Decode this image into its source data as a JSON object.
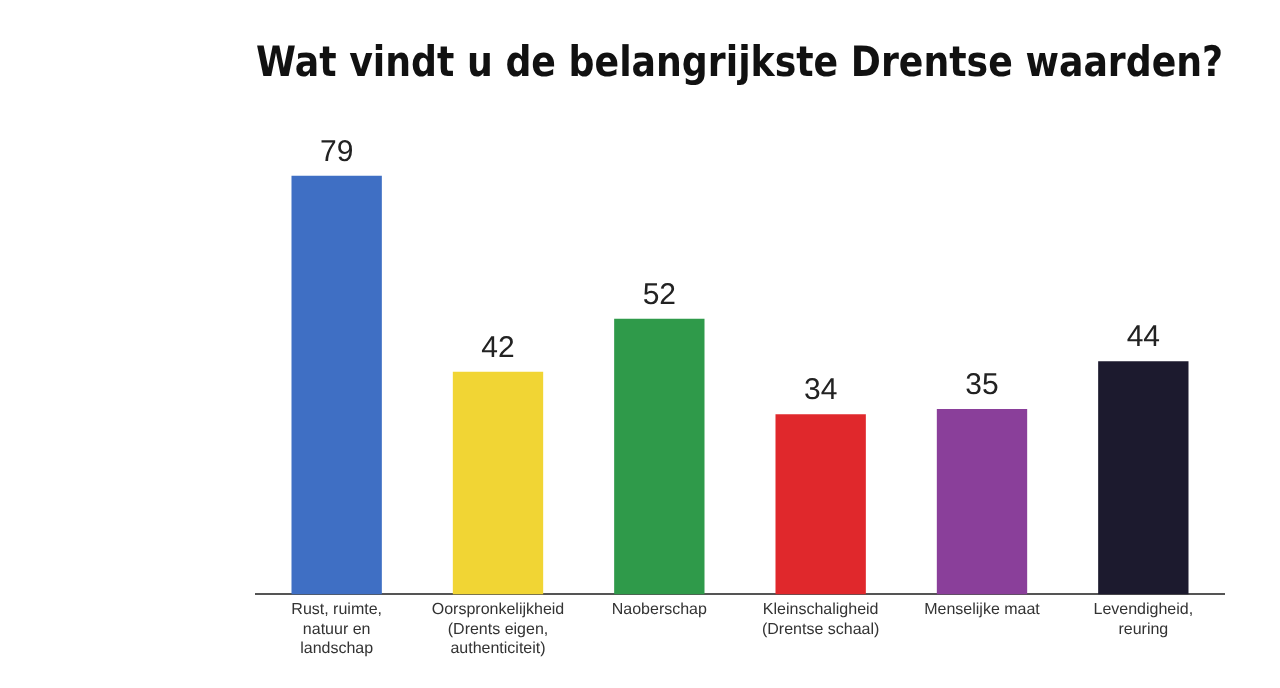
{
  "chart_data": {
    "type": "bar",
    "title": "Wat vindt u de belangrijkste Drentse waarden?",
    "categories": [
      "Rust, ruimte, natuur en landschap",
      "Oorspronkelijkheid (Drents eigen, authenticiteit)",
      "Naoberschap",
      "Kleinschaligheid (Drentse schaal)",
      "Menselijke maat",
      "Levendigheid, reuring"
    ],
    "values": [
      79,
      42,
      52,
      34,
      35,
      44
    ],
    "colors": [
      "#3f6fc4",
      "#f1d534",
      "#2f9a4a",
      "#e0282c",
      "#8a3f9a",
      "#1c1a2e"
    ],
    "data_labels": true
  }
}
